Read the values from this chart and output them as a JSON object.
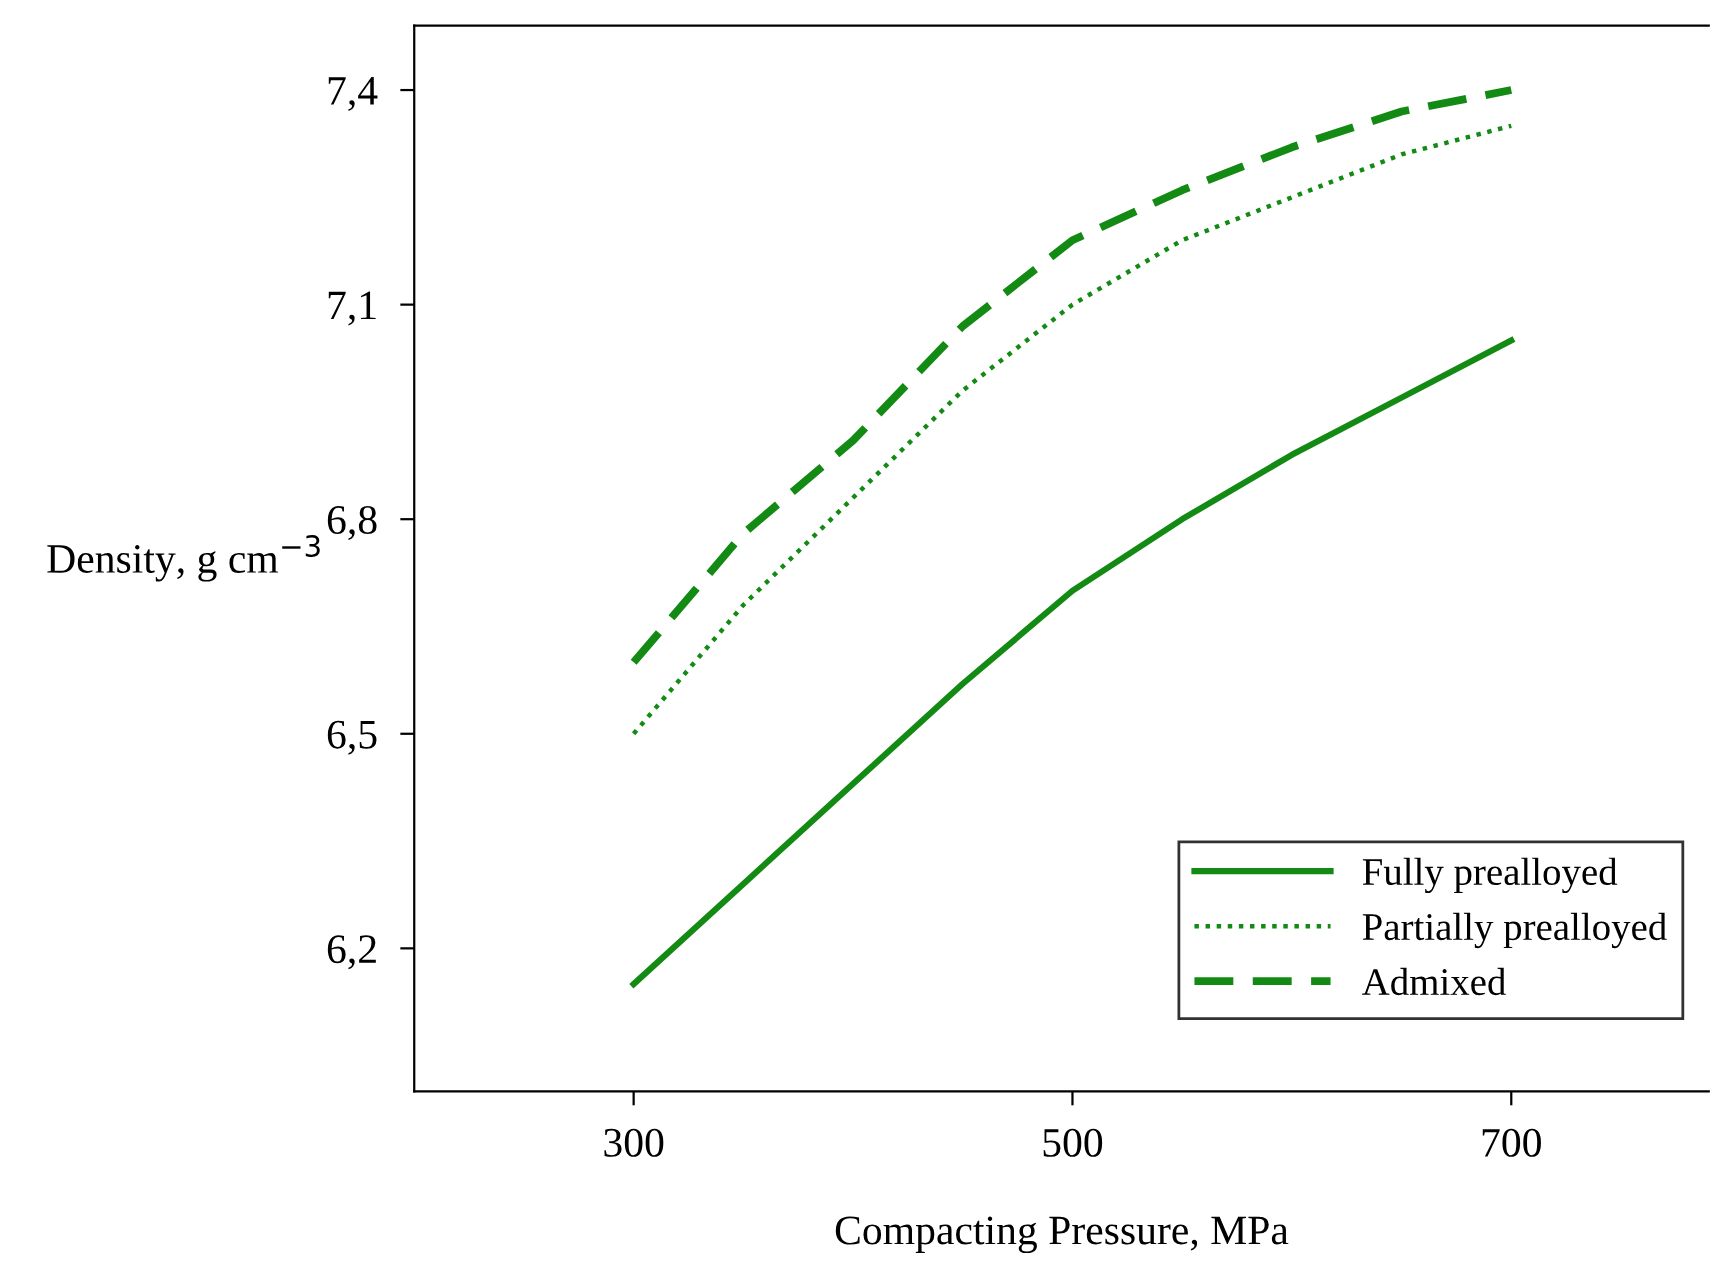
{
  "chart_data": {
    "type": "line",
    "xlabel": "Compacting Pressure, MPa",
    "ylabel": "Density, g cm$^{−3}$",
    "xlim": [
      200,
      790
    ],
    "xticks": [
      300,
      500,
      700
    ],
    "ylim": [
      6.0,
      7.49
    ],
    "yticks": [
      {
        "value": 6.2,
        "label": "6,2"
      },
      {
        "value": 6.5,
        "label": "6,5"
      },
      {
        "value": 6.8,
        "label": "6,8"
      },
      {
        "value": 7.1,
        "label": "7,1"
      },
      {
        "value": 7.4,
        "label": "7,4"
      }
    ],
    "x": [
      300,
      350,
      400,
      450,
      500,
      550,
      600,
      650,
      700
    ],
    "grid": false,
    "legend": "bottom right",
    "marker": "none",
    "series": [
      {
        "name": "Fully prealloyed",
        "color": "#138a13",
        "line_style": "solid",
        "values": [
          6.15,
          6.29,
          6.43,
          6.57,
          6.7,
          6.8,
          6.89,
          6.97,
          7.05
        ]
      },
      {
        "name": "Partially prealloyed",
        "color": "#138a13",
        "line_style": "dotted",
        "values": [
          6.5,
          6.68,
          6.83,
          6.98,
          7.1,
          7.19,
          7.25,
          7.31,
          7.35
        ]
      },
      {
        "name": "Admixed",
        "color": "#138a13",
        "line_style": "dashed",
        "values": [
          6.6,
          6.78,
          6.91,
          7.07,
          7.19,
          7.26,
          7.32,
          7.37,
          7.4
        ]
      }
    ]
  }
}
